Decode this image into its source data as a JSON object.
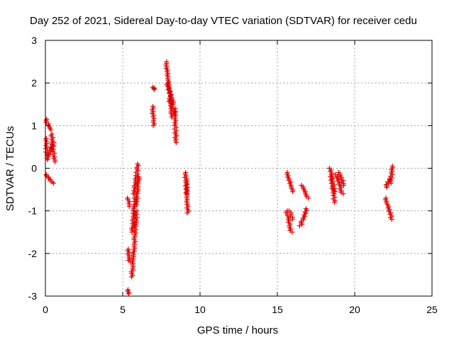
{
  "chart_data": {
    "type": "scatter",
    "title": "Day 252 of 2021, Sidereal Day-to-day VTEC variation (SDTVAR) for receiver cedu",
    "xlabel": "GPS time / hours",
    "ylabel": "SDTVAR / TECUs",
    "xlim": [
      0,
      25
    ],
    "ylim": [
      -3,
      3
    ],
    "x_ticks": [
      "0",
      "5",
      "10",
      "15",
      "20",
      "25"
    ],
    "y_ticks": [
      "-3",
      "-2",
      "-1",
      "0",
      "1",
      "2",
      "3"
    ],
    "grid": true,
    "legend": "none",
    "marker": "plus",
    "color": "#e00000",
    "segments": [
      {
        "x0": 0.02,
        "y0": 1.15,
        "x1": 0.35,
        "y1": 0.9
      },
      {
        "x0": 0.05,
        "y0": 0.7,
        "x1": 0.1,
        "y1": 0.3
      },
      {
        "x0": 0.1,
        "y0": 0.2,
        "x1": 0.5,
        "y1": 0.6
      },
      {
        "x0": 0.4,
        "y0": 0.8,
        "x1": 0.6,
        "y1": 0.15
      },
      {
        "x0": 0.02,
        "y0": -0.15,
        "x1": 0.5,
        "y1": -0.35
      },
      {
        "x0": 5.3,
        "y0": -2.85,
        "x1": 5.4,
        "y1": -2.95
      },
      {
        "x0": 5.35,
        "y0": -1.9,
        "x1": 5.45,
        "y1": -2.2
      },
      {
        "x0": 5.35,
        "y0": -0.7,
        "x1": 5.45,
        "y1": -0.9
      },
      {
        "x0": 5.6,
        "y0": -2.55,
        "x1": 5.9,
        "y1": -1.0
      },
      {
        "x0": 5.6,
        "y0": -1.5,
        "x1": 5.8,
        "y1": -0.7
      },
      {
        "x0": 5.7,
        "y0": -0.6,
        "x1": 6.0,
        "y1": 0.1
      },
      {
        "x0": 5.85,
        "y0": -0.9,
        "x1": 6.05,
        "y1": -0.2
      },
      {
        "x0": 6.95,
        "y0": 1.45,
        "x1": 7.0,
        "y1": 1.0
      },
      {
        "x0": 6.95,
        "y0": 1.9,
        "x1": 7.05,
        "y1": 1.85
      },
      {
        "x0": 7.8,
        "y0": 2.5,
        "x1": 8.2,
        "y1": 1.2
      },
      {
        "x0": 7.85,
        "y0": 2.0,
        "x1": 8.3,
        "y1": 1.5
      },
      {
        "x0": 8.0,
        "y0": 1.6,
        "x1": 8.4,
        "y1": 1.25
      },
      {
        "x0": 8.35,
        "y0": 1.4,
        "x1": 8.45,
        "y1": 0.6
      },
      {
        "x0": 9.05,
        "y0": -0.1,
        "x1": 9.15,
        "y1": -0.6
      },
      {
        "x0": 9.1,
        "y0": -0.3,
        "x1": 9.2,
        "y1": -1.05
      },
      {
        "x0": 15.6,
        "y0": -0.1,
        "x1": 16.0,
        "y1": -0.55
      },
      {
        "x0": 15.6,
        "y0": -1.0,
        "x1": 15.9,
        "y1": -1.5
      },
      {
        "x0": 15.8,
        "y0": -1.0,
        "x1": 16.0,
        "y1": -1.2
      },
      {
        "x0": 16.5,
        "y0": -1.35,
        "x1": 16.9,
        "y1": -0.95
      },
      {
        "x0": 16.6,
        "y0": -0.4,
        "x1": 16.95,
        "y1": -0.7
      },
      {
        "x0": 18.4,
        "y0": 0.0,
        "x1": 18.7,
        "y1": -0.55
      },
      {
        "x0": 18.5,
        "y0": -0.2,
        "x1": 18.7,
        "y1": -0.8
      },
      {
        "x0": 18.8,
        "y0": -0.15,
        "x1": 19.2,
        "y1": -0.6
      },
      {
        "x0": 19.0,
        "y0": -0.1,
        "x1": 19.3,
        "y1": -0.4
      },
      {
        "x0": 22.0,
        "y0": -0.45,
        "x1": 22.3,
        "y1": -0.25
      },
      {
        "x0": 22.3,
        "y0": -0.35,
        "x1": 22.45,
        "y1": 0.05
      },
      {
        "x0": 22.0,
        "y0": -0.7,
        "x1": 22.4,
        "y1": -1.2
      }
    ]
  }
}
